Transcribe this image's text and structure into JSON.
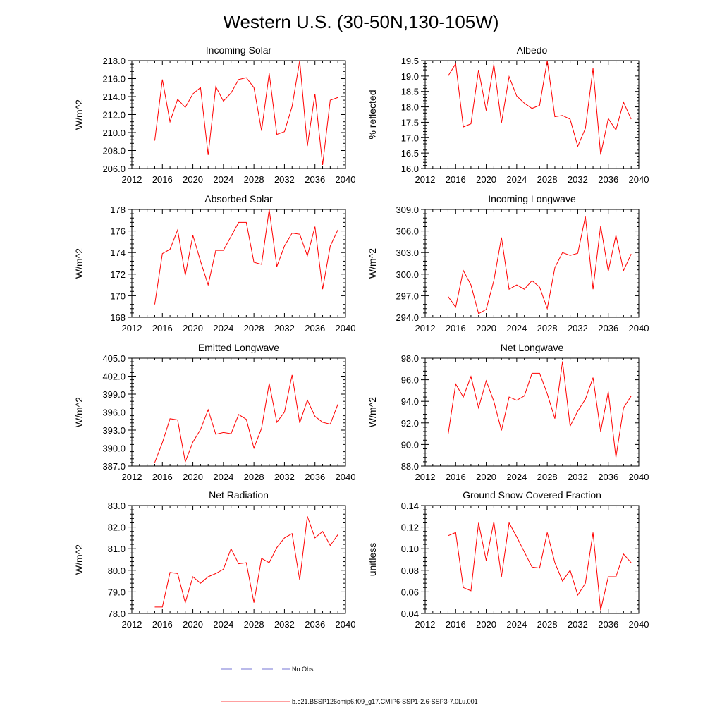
{
  "figure": {
    "title": "Western U.S. (30-50N,130-105W)",
    "legend": [
      {
        "label": "No Obs",
        "color": "#4a4ac8",
        "dashed": true
      },
      {
        "label": "b.e21.BSSP126cmip6.f09_g17.CMIP6-SSP1-2.6-SSP3-7.0Lu.001",
        "color": "#ff0000",
        "dashed": false
      }
    ]
  },
  "chart_data": [
    {
      "type": "line",
      "title": "Incoming Solar",
      "xlabel": "",
      "ylabel": "W/m^2",
      "xlim": [
        2012,
        2040
      ],
      "ylim": [
        206,
        218
      ],
      "xticks": [
        2012,
        2016,
        2020,
        2024,
        2028,
        2032,
        2036,
        2040
      ],
      "yticks": [
        "206.0",
        "208.0",
        "210.0",
        "212.0",
        "214.0",
        "216.0",
        "218.0"
      ],
      "x": [
        2015,
        2016,
        2017,
        2018,
        2019,
        2020,
        2021,
        2022,
        2023,
        2024,
        2025,
        2026,
        2027,
        2028,
        2029,
        2030,
        2031,
        2032,
        2033,
        2034,
        2035,
        2036,
        2037,
        2038,
        2039
      ],
      "series": [
        {
          "color": "#ff0000",
          "values": [
            209.1,
            215.9,
            211.2,
            213.7,
            212.8,
            214.3,
            215.0,
            207.5,
            215.1,
            213.5,
            214.4,
            215.9,
            216.1,
            215.0,
            210.2,
            216.6,
            209.8,
            210.1,
            212.9,
            218.0,
            208.5,
            214.3,
            206.4,
            213.6,
            213.9
          ]
        }
      ]
    },
    {
      "type": "line",
      "title": "Albedo",
      "xlabel": "",
      "ylabel": "% reflected",
      "xlim": [
        2012,
        2040
      ],
      "ylim": [
        16,
        19.5
      ],
      "xticks": [
        2012,
        2016,
        2020,
        2024,
        2028,
        2032,
        2036,
        2040
      ],
      "yticks": [
        "16.0",
        "16.5",
        "17.0",
        "17.5",
        "18.0",
        "18.5",
        "19.0",
        "19.5"
      ],
      "x": [
        2015,
        2016,
        2017,
        2018,
        2019,
        2020,
        2021,
        2022,
        2023,
        2024,
        2025,
        2026,
        2027,
        2028,
        2029,
        2030,
        2031,
        2032,
        2033,
        2034,
        2035,
        2036,
        2037,
        2038,
        2039
      ],
      "series": [
        {
          "color": "#ff0000",
          "values": [
            19.0,
            19.4,
            17.35,
            17.45,
            19.2,
            17.88,
            19.38,
            17.48,
            18.98,
            18.35,
            18.12,
            17.95,
            18.05,
            19.5,
            17.68,
            17.72,
            17.6,
            16.72,
            17.3,
            19.25,
            16.45,
            17.62,
            17.25,
            18.15,
            17.6
          ]
        }
      ]
    },
    {
      "type": "line",
      "title": "Absorbed Solar",
      "xlabel": "",
      "ylabel": "W/m^2",
      "xlim": [
        2012,
        2040
      ],
      "ylim": [
        168,
        178
      ],
      "xticks": [
        2012,
        2016,
        2020,
        2024,
        2028,
        2032,
        2036,
        2040
      ],
      "yticks": [
        "168",
        "170",
        "172",
        "174",
        "176",
        "178"
      ],
      "x": [
        2015,
        2016,
        2017,
        2018,
        2019,
        2020,
        2021,
        2022,
        2023,
        2024,
        2025,
        2026,
        2027,
        2028,
        2029,
        2030,
        2031,
        2032,
        2033,
        2034,
        2035,
        2036,
        2037,
        2038,
        2039
      ],
      "series": [
        {
          "color": "#ff0000",
          "values": [
            169.2,
            173.9,
            174.3,
            176.1,
            171.9,
            175.6,
            173.2,
            171.0,
            174.2,
            174.2,
            175.5,
            176.8,
            176.8,
            173.1,
            172.9,
            178.0,
            172.7,
            174.6,
            175.8,
            175.7,
            173.7,
            176.4,
            170.6,
            174.6,
            176.1
          ]
        }
      ]
    },
    {
      "type": "line",
      "title": "Incoming Longwave",
      "xlabel": "",
      "ylabel": "W/m^2",
      "xlim": [
        2012,
        2040
      ],
      "ylim": [
        294,
        309
      ],
      "xticks": [
        2012,
        2016,
        2020,
        2024,
        2028,
        2032,
        2036,
        2040
      ],
      "yticks": [
        "294.0",
        "297.0",
        "300.0",
        "303.0",
        "306.0",
        "309.0"
      ],
      "x": [
        2015,
        2016,
        2017,
        2018,
        2019,
        2020,
        2021,
        2022,
        2023,
        2024,
        2025,
        2026,
        2027,
        2028,
        2029,
        2030,
        2031,
        2032,
        2033,
        2034,
        2035,
        2036,
        2037,
        2038,
        2039
      ],
      "series": [
        {
          "color": "#ff0000",
          "values": [
            296.9,
            295.4,
            300.5,
            298.5,
            294.5,
            295.1,
            299.1,
            305.1,
            297.9,
            298.5,
            297.9,
            299.1,
            298.2,
            295.2,
            300.9,
            303.0,
            302.6,
            302.9,
            308.0,
            297.9,
            306.7,
            300.4,
            305.4,
            300.5,
            302.8
          ]
        }
      ]
    },
    {
      "type": "line",
      "title": "Emitted Longwave",
      "xlabel": "",
      "ylabel": "W/m^2",
      "xlim": [
        2012,
        2040
      ],
      "ylim": [
        387,
        405
      ],
      "xticks": [
        2012,
        2016,
        2020,
        2024,
        2028,
        2032,
        2036,
        2040
      ],
      "yticks": [
        "387.0",
        "390.0",
        "393.0",
        "396.0",
        "399.0",
        "402.0",
        "405.0"
      ],
      "x": [
        2015,
        2016,
        2017,
        2018,
        2019,
        2020,
        2021,
        2022,
        2023,
        2024,
        2025,
        2026,
        2027,
        2028,
        2029,
        2030,
        2031,
        2032,
        2033,
        2034,
        2035,
        2036,
        2037,
        2038,
        2039
      ],
      "series": [
        {
          "color": "#ff0000",
          "values": [
            387.6,
            390.9,
            394.9,
            394.7,
            387.7,
            391.0,
            393.1,
            396.4,
            392.3,
            392.6,
            392.4,
            395.6,
            394.8,
            390.0,
            393.3,
            400.8,
            394.3,
            396.0,
            402.2,
            394.2,
            398.0,
            395.3,
            394.3,
            394.0,
            397.3
          ]
        }
      ]
    },
    {
      "type": "line",
      "title": "Net Longwave",
      "xlabel": "",
      "ylabel": "W/m^2",
      "xlim": [
        2012,
        2040
      ],
      "ylim": [
        88,
        98
      ],
      "xticks": [
        2012,
        2016,
        2020,
        2024,
        2028,
        2032,
        2036,
        2040
      ],
      "yticks": [
        "88.0",
        "90.0",
        "92.0",
        "94.0",
        "96.0",
        "98.0"
      ],
      "x": [
        2015,
        2016,
        2017,
        2018,
        2019,
        2020,
        2021,
        2022,
        2023,
        2024,
        2025,
        2026,
        2027,
        2028,
        2029,
        2030,
        2031,
        2032,
        2033,
        2034,
        2035,
        2036,
        2037,
        2038,
        2039
      ],
      "series": [
        {
          "color": "#ff0000",
          "values": [
            90.9,
            95.6,
            94.4,
            96.3,
            93.4,
            95.9,
            94.0,
            91.3,
            94.4,
            94.1,
            94.5,
            96.6,
            96.6,
            94.7,
            92.4,
            97.7,
            91.7,
            93.1,
            94.2,
            96.2,
            91.2,
            94.9,
            88.8,
            93.4,
            94.5
          ]
        }
      ]
    },
    {
      "type": "line",
      "title": "Net Radiation",
      "xlabel": "",
      "ylabel": "W/m^2",
      "xlim": [
        2012,
        2040
      ],
      "ylim": [
        78,
        83
      ],
      "xticks": [
        2012,
        2016,
        2020,
        2024,
        2028,
        2032,
        2036,
        2040
      ],
      "yticks": [
        "78.0",
        "79.0",
        "80.0",
        "81.0",
        "82.0",
        "83.0"
      ],
      "x": [
        2015,
        2016,
        2017,
        2018,
        2019,
        2020,
        2021,
        2022,
        2023,
        2024,
        2025,
        2026,
        2027,
        2028,
        2029,
        2030,
        2031,
        2032,
        2033,
        2034,
        2035,
        2036,
        2037,
        2038,
        2039
      ],
      "series": [
        {
          "color": "#ff0000",
          "values": [
            78.3,
            78.3,
            79.9,
            79.85,
            78.5,
            79.7,
            79.4,
            79.7,
            79.85,
            80.05,
            81.0,
            80.3,
            80.35,
            78.5,
            80.55,
            80.35,
            81.05,
            81.5,
            81.7,
            79.55,
            82.5,
            81.5,
            81.8,
            81.15,
            81.65
          ]
        }
      ]
    },
    {
      "type": "line",
      "title": "Ground Snow Covered Fraction",
      "xlabel": "",
      "ylabel": "unitless",
      "xlim": [
        2012,
        2040
      ],
      "ylim": [
        0.04,
        0.14
      ],
      "xticks": [
        2012,
        2016,
        2020,
        2024,
        2028,
        2032,
        2036,
        2040
      ],
      "yticks": [
        "0.04",
        "0.06",
        "0.08",
        "0.10",
        "0.12",
        "0.14"
      ],
      "x": [
        2015,
        2016,
        2017,
        2018,
        2019,
        2020,
        2021,
        2022,
        2023,
        2024,
        2025,
        2026,
        2027,
        2028,
        2029,
        2030,
        2031,
        2032,
        2033,
        2034,
        2035,
        2036,
        2037,
        2038,
        2039
      ],
      "series": [
        {
          "color": "#ff0000",
          "values": [
            0.112,
            0.115,
            0.064,
            0.061,
            0.124,
            0.089,
            0.125,
            0.074,
            0.124,
            0.111,
            0.097,
            0.083,
            0.082,
            0.115,
            0.087,
            0.07,
            0.08,
            0.057,
            0.068,
            0.115,
            0.043,
            0.074,
            0.074,
            0.095,
            0.087
          ]
        }
      ]
    }
  ]
}
